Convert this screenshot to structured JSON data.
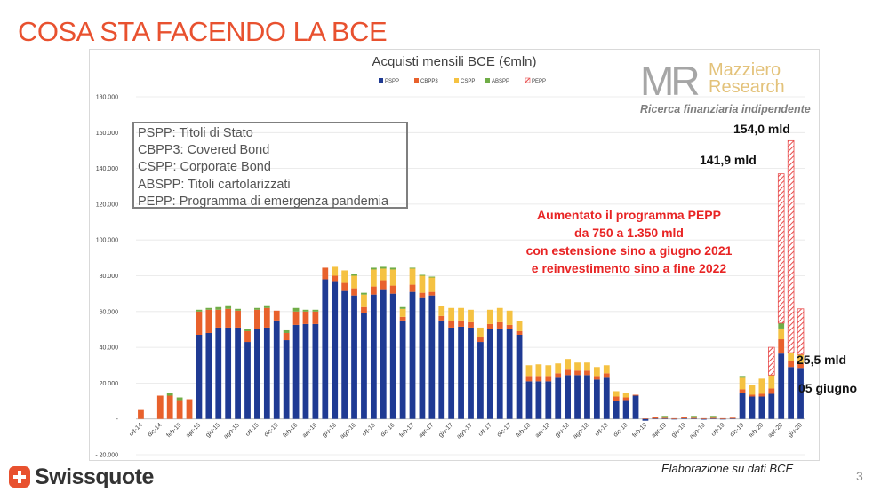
{
  "slide": {
    "title": "COSA STA FACENDO LA BCE",
    "page_number": "3",
    "source_note": "Elaborazione su dati BCE",
    "brand": "Swissquote"
  },
  "logo": {
    "letters": "MR",
    "name_line1": "Mazziero",
    "name_line2": "Research",
    "tagline": "Ricerca finanziaria indipendente"
  },
  "acronyms": [
    "PSPP: Titoli di Stato",
    "CBPP3: Covered Bond",
    "CSPP: Corporate Bond",
    "ABSPP: Titoli cartolarizzati",
    "PEPP: Programma di emergenza pandemia"
  ],
  "pepp_note": [
    "Aumentato il programma PEPP",
    "da 750 a 1.350 mld",
    "con estensione sino a giugno 2021",
    "e reinvestimento sino a fine 2022"
  ],
  "callouts": {
    "c154": "154,0 mld",
    "c141": "141,9 mld",
    "c25": "25,5 mld",
    "cjune": "05 giugno"
  },
  "colors": {
    "PSPP": "#1f3a93",
    "CBPP3": "#e8612c",
    "CSPP": "#f5c242",
    "ABSPP": "#70ad47",
    "PEPP": "#e84c4c",
    "title": "#e8512f"
  },
  "chart_data": {
    "type": "bar",
    "stacked": true,
    "title": "Acquisti mensili BCE (€mln)",
    "ylim": [
      -20000,
      180000
    ],
    "yticks": [
      -20000,
      0,
      20000,
      40000,
      60000,
      80000,
      100000,
      120000,
      140000,
      160000,
      180000
    ],
    "ytick_labels": [
      "- 20.000",
      "-",
      "20.000",
      "40.000",
      "60.000",
      "80.000",
      "100.000",
      "120.000",
      "140.000",
      "160.000",
      "180.000"
    ],
    "grid": true,
    "legend_position": "top",
    "categories": [
      "ott-14",
      "nov-14",
      "dic-14",
      "gen-15",
      "feb-15",
      "mar-15",
      "apr-15",
      "mag-15",
      "giu-15",
      "lug-15",
      "ago-15",
      "set-15",
      "ott-15",
      "nov-15",
      "dic-15",
      "gen-16",
      "feb-16",
      "mar-16",
      "apr-16",
      "mag-16",
      "giu-16",
      "lug-16",
      "ago-16",
      "set-16",
      "ott-16",
      "nov-16",
      "dic-16",
      "gen-17",
      "feb-17",
      "mar-17",
      "apr-17",
      "mag-17",
      "giu-17",
      "lug-17",
      "ago-17",
      "set-17",
      "ott-17",
      "nov-17",
      "dic-17",
      "gen-18",
      "feb-18",
      "mar-18",
      "apr-18",
      "mag-18",
      "giu-18",
      "lug-18",
      "ago-18",
      "set-18",
      "ott-18",
      "nov-18",
      "dic-18",
      "gen-19",
      "feb-19",
      "mar-19",
      "apr-19",
      "mag-19",
      "giu-19",
      "lug-19",
      "ago-19",
      "set-19",
      "ott-19",
      "nov-19",
      "dic-19",
      "gen-20",
      "feb-20",
      "mar-20",
      "apr-20",
      "mag-20",
      "giu-20"
    ],
    "tick_labels": [
      "ott-14",
      "dic-14",
      "feb-15",
      "apr-15",
      "giu-15",
      "ago-15",
      "ott-15",
      "dic-15",
      "feb-16",
      "apr-16",
      "giu-16",
      "ago-16",
      "ott-16",
      "dic-16",
      "feb-17",
      "apr-17",
      "giu-17",
      "ago-17",
      "ott-17",
      "dic-17",
      "feb-18",
      "apr-18",
      "giu-18",
      "ago-18",
      "ott-18",
      "dic-18",
      "feb-19",
      "apr-19",
      "giu-19",
      "ago-19",
      "ott-19",
      "dic-19",
      "feb-20",
      "apr-20",
      "giu-20"
    ],
    "series": [
      {
        "name": "PSPP",
        "values": [
          0,
          0,
          0,
          0,
          0,
          0,
          47000,
          48000,
          51000,
          51000,
          51000,
          43000,
          50000,
          51000,
          55000,
          44000,
          52500,
          53000,
          53000,
          78000,
          77000,
          71500,
          69000,
          59000,
          69500,
          72500,
          70000,
          55000,
          71000,
          68000,
          69000,
          55000,
          51000,
          51500,
          51000,
          43000,
          50000,
          50500,
          50000,
          47000,
          21000,
          21000,
          21000,
          23000,
          24500,
          24500,
          24500,
          22000,
          23000,
          10000,
          10500,
          13000,
          -1000,
          200,
          200,
          -200,
          300,
          200,
          -400,
          200,
          -200,
          200,
          14500,
          12500,
          12500,
          14000,
          36500,
          29000,
          28500
        ]
      },
      {
        "name": "CBPP3",
        "values": [
          5000,
          0,
          13000,
          13000,
          10500,
          11000,
          13000,
          13000,
          10000,
          10500,
          9500,
          6000,
          11000,
          11000,
          5500,
          4000,
          7500,
          7000,
          7000,
          6500,
          3000,
          4500,
          4000,
          3500,
          4500,
          5000,
          4500,
          2000,
          4000,
          2500,
          2000,
          2500,
          3500,
          3500,
          3000,
          2500,
          3000,
          3500,
          2500,
          2000,
          3000,
          3000,
          3000,
          2500,
          3000,
          2500,
          2500,
          2000,
          2500,
          2500,
          1500,
          500,
          300,
          700,
          500,
          400,
          600,
          500,
          400,
          500,
          400,
          500,
          2000,
          1000,
          1500,
          3000,
          8000,
          3500,
          2500
        ]
      },
      {
        "name": "CSPP",
        "values": [
          0,
          0,
          0,
          0,
          0,
          0,
          0,
          0,
          0,
          0,
          0,
          0,
          0,
          0,
          0,
          0,
          0,
          0,
          0,
          0,
          5000,
          7000,
          7000,
          7000,
          9500,
          6500,
          9000,
          4500,
          9000,
          9500,
          8000,
          5500,
          7500,
          7000,
          7000,
          5500,
          8000,
          8000,
          8000,
          5500,
          6000,
          6500,
          6000,
          5500,
          6000,
          4500,
          4500,
          5000,
          4500,
          3000,
          2500,
          0,
          0,
          0,
          0,
          0,
          0,
          0,
          0,
          0,
          0,
          0,
          6500,
          5500,
          8500,
          7500,
          6000,
          4500,
          5000
        ]
      },
      {
        "name": "ABSPP",
        "values": [
          0,
          0,
          0,
          1500,
          1500,
          0,
          1000,
          1000,
          1500,
          2000,
          1000,
          1000,
          1000,
          1500,
          0,
          1500,
          2000,
          1000,
          1000,
          0,
          0,
          0,
          1000,
          1000,
          1000,
          1000,
          1000,
          1000,
          500,
          500,
          500,
          0,
          0,
          0,
          0,
          0,
          0,
          0,
          0,
          0,
          0,
          0,
          0,
          0,
          0,
          0,
          0,
          0,
          0,
          0,
          0,
          0,
          0,
          0,
          1000,
          0,
          0,
          1000,
          0,
          1000,
          0,
          0,
          1000,
          0,
          0,
          0,
          3000,
          0,
          0
        ]
      },
      {
        "name": "PEPP",
        "values": [
          0,
          0,
          0,
          0,
          0,
          0,
          0,
          0,
          0,
          0,
          0,
          0,
          0,
          0,
          0,
          0,
          0,
          0,
          0,
          0,
          0,
          0,
          0,
          0,
          0,
          0,
          0,
          0,
          0,
          0,
          0,
          0,
          0,
          0,
          0,
          0,
          0,
          0,
          0,
          0,
          0,
          0,
          0,
          0,
          0,
          0,
          0,
          0,
          0,
          0,
          0,
          0,
          0,
          0,
          0,
          0,
          0,
          0,
          0,
          0,
          0,
          0,
          0,
          0,
          0,
          15500,
          83500,
          118500,
          25500
        ]
      }
    ]
  }
}
